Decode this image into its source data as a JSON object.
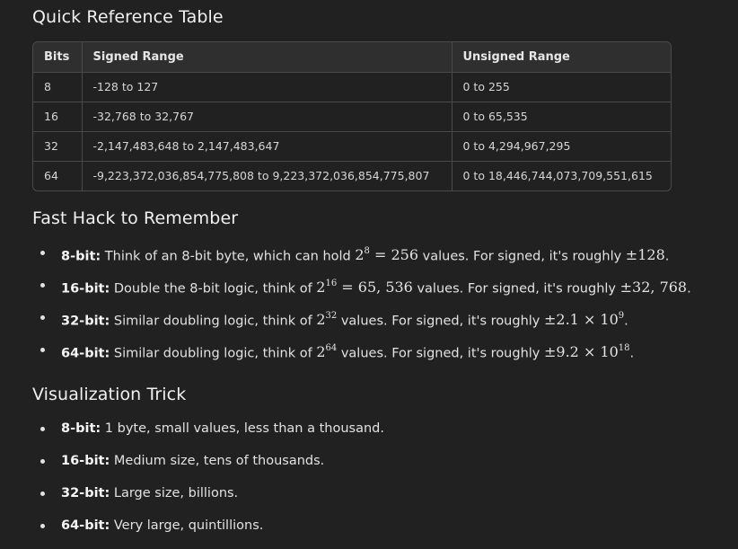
{
  "sections": {
    "quick_title": "Quick Reference Table",
    "fast_title": "Fast Hack to Remember",
    "vis_title": "Visualization Trick"
  },
  "table": {
    "headers": [
      "Bits",
      "Signed Range",
      "Unsigned Range"
    ],
    "rows": [
      [
        "8",
        "-128 to 127",
        "0 to 255"
      ],
      [
        "16",
        "-32,768 to 32,767",
        "0 to 65,535"
      ],
      [
        "32",
        "-2,147,483,648 to 2,147,483,647",
        "0 to 4,294,967,295"
      ],
      [
        "64",
        "-9,223,372,036,854,775,808 to 9,223,372,036,854,775,807",
        "0 to 18,446,744,073,709,551,615"
      ]
    ]
  },
  "fast_hack": [
    {
      "label": "8-bit:",
      "t1": " Think of an 8-bit byte, which can hold ",
      "m1": "2",
      "m1sup": "8",
      "m1rest": " = 256",
      "t2": " values. For signed, it's roughly ",
      "m2": "±128",
      "m2sup": "",
      "t3": "."
    },
    {
      "label": "16-bit:",
      "t1": " Double the 8-bit logic, think of ",
      "m1": "2",
      "m1sup": "16",
      "m1rest": " = 65, 536",
      "t2": " values. For signed, it's roughly ",
      "m2": "±32, 768",
      "m2sup": "",
      "t3": "."
    },
    {
      "label": "32-bit:",
      "t1": " Similar doubling logic, think of ",
      "m1": "2",
      "m1sup": "32",
      "m1rest": "",
      "t2": " values. For signed, it's roughly ",
      "m2": "±2.1 × 10",
      "m2sup": "9",
      "t3": "."
    },
    {
      "label": "64-bit:",
      "t1": " Similar doubling logic, think of ",
      "m1": "2",
      "m1sup": "64",
      "m1rest": "",
      "t2": " values. For signed, it's roughly ",
      "m2": "±9.2 × 10",
      "m2sup": "18",
      "t3": "."
    }
  ],
  "visualization": [
    {
      "label": "8-bit:",
      "text": " 1 byte, small values, less than a thousand."
    },
    {
      "label": "16-bit:",
      "text": " Medium size, tens of thousands."
    },
    {
      "label": "32-bit:",
      "text": " Large size, billions."
    },
    {
      "label": "64-bit:",
      "text": " Very large, quintillions."
    }
  ]
}
